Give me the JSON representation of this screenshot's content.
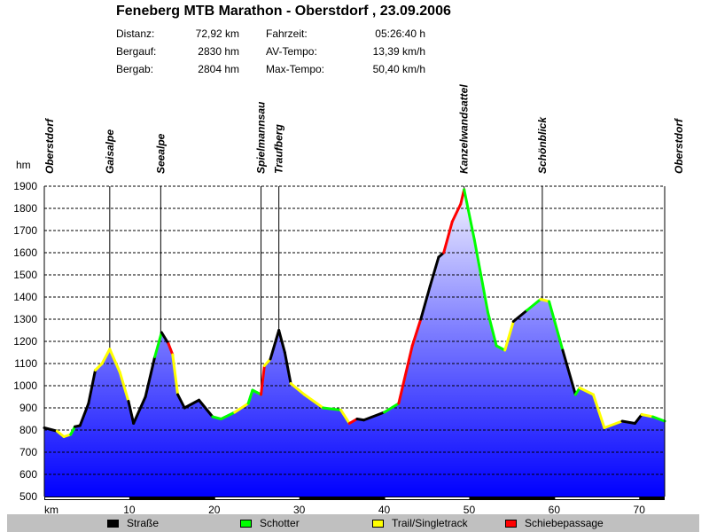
{
  "chart_data": {
    "type": "area",
    "title": "Feneberg MTB Marathon - Oberstdorf , 23.09.2006",
    "xlabel": "km",
    "ylabel": "hm",
    "xlim": [
      0,
      73
    ],
    "ylim": [
      500,
      1900
    ],
    "grid": true,
    "xticks": [
      10,
      20,
      30,
      40,
      50,
      60,
      70
    ],
    "yticks": [
      500,
      600,
      700,
      800,
      900,
      1000,
      1100,
      1200,
      1300,
      1400,
      1500,
      1600,
      1700,
      1800,
      1900
    ],
    "surface_colors": {
      "road": "#000000",
      "gravel": "#00ff00",
      "trail": "#ffff00",
      "push": "#ff0000"
    },
    "legend": [
      {
        "key": "road",
        "label": "Straße"
      },
      {
        "key": "gravel",
        "label": "Schotter"
      },
      {
        "key": "trail",
        "label": "Trail/Singletrack"
      },
      {
        "key": "push",
        "label": "Schiebepassage"
      }
    ],
    "landmarks": [
      {
        "km": 0,
        "label": "Oberstdorf",
        "line": false
      },
      {
        "km": 7.7,
        "label": "Gaisalpe",
        "line": true
      },
      {
        "km": 13.7,
        "label": "Seealpe",
        "line": true
      },
      {
        "km": 25.5,
        "label": "Spielmannsau",
        "line": true
      },
      {
        "km": 27.6,
        "label": "Traufberg",
        "line": true
      },
      {
        "km": 49.4,
        "label": "Kanzelwandsattel",
        "line": true
      },
      {
        "km": 58.6,
        "label": "Schönblick",
        "line": true
      },
      {
        "km": 73,
        "label": "Oberstdorf",
        "line": false
      }
    ],
    "points": [
      [
        0,
        810,
        "road"
      ],
      [
        1.5,
        795,
        "road"
      ],
      [
        2.3,
        770,
        "trail"
      ],
      [
        3.1,
        780,
        "trail"
      ],
      [
        3.6,
        815,
        "gravel"
      ],
      [
        4.2,
        820,
        "road"
      ],
      [
        5.2,
        920,
        "road"
      ],
      [
        6.0,
        1070,
        "road"
      ],
      [
        6.8,
        1100,
        "trail"
      ],
      [
        7.7,
        1165,
        "trail"
      ],
      [
        8.9,
        1060,
        "trail"
      ],
      [
        9.9,
        930,
        "trail"
      ],
      [
        10.5,
        830,
        "road"
      ],
      [
        11.9,
        950,
        "road"
      ],
      [
        13.0,
        1130,
        "road"
      ],
      [
        13.8,
        1240,
        "gravel"
      ],
      [
        14.6,
        1190,
        "road"
      ],
      [
        15.1,
        1140,
        "push"
      ],
      [
        15.7,
        960,
        "trail"
      ],
      [
        16.5,
        900,
        "road"
      ],
      [
        18.2,
        935,
        "road"
      ],
      [
        19.8,
        860,
        "road"
      ],
      [
        20.8,
        850,
        "gravel"
      ],
      [
        22.4,
        880,
        "gravel"
      ],
      [
        24.0,
        920,
        "trail"
      ],
      [
        24.5,
        980,
        "gravel"
      ],
      [
        25.5,
        960,
        "gravel"
      ],
      [
        25.9,
        1090,
        "push"
      ],
      [
        26.6,
        1120,
        "trail"
      ],
      [
        27.6,
        1250,
        "road"
      ],
      [
        28.3,
        1150,
        "road"
      ],
      [
        29.0,
        1010,
        "road"
      ],
      [
        30.6,
        960,
        "trail"
      ],
      [
        32.8,
        900,
        "trail"
      ],
      [
        34.9,
        890,
        "gravel"
      ],
      [
        35.9,
        830,
        "trail"
      ],
      [
        36.8,
        850,
        "push"
      ],
      [
        37.6,
        845,
        "road"
      ],
      [
        40.0,
        880,
        "road"
      ],
      [
        41.7,
        920,
        "gravel"
      ],
      [
        43.3,
        1180,
        "push"
      ],
      [
        44.3,
        1300,
        "push"
      ],
      [
        45.4,
        1450,
        "road"
      ],
      [
        46.4,
        1580,
        "road"
      ],
      [
        47.0,
        1600,
        "road"
      ],
      [
        48.0,
        1740,
        "push"
      ],
      [
        49.0,
        1820,
        "push"
      ],
      [
        49.4,
        1885,
        "push"
      ],
      [
        50.6,
        1660,
        "gravel"
      ],
      [
        52.2,
        1330,
        "gravel"
      ],
      [
        53.2,
        1180,
        "gravel"
      ],
      [
        54.2,
        1160,
        "gravel"
      ],
      [
        55.2,
        1290,
        "trail"
      ],
      [
        56.8,
        1340,
        "road"
      ],
      [
        58.4,
        1390,
        "gravel"
      ],
      [
        59.4,
        1380,
        "trail"
      ],
      [
        61.0,
        1160,
        "gravel"
      ],
      [
        62.5,
        960,
        "road"
      ],
      [
        63.0,
        990,
        "gravel"
      ],
      [
        64.6,
        960,
        "trail"
      ],
      [
        65.9,
        810,
        "trail"
      ],
      [
        68.0,
        840,
        "trail"
      ],
      [
        69.5,
        830,
        "road"
      ],
      [
        70.3,
        870,
        "road"
      ],
      [
        71.6,
        860,
        "trail"
      ],
      [
        73.0,
        840,
        "gravel"
      ]
    ]
  },
  "stats": {
    "distance_label": "Distanz:",
    "distance": "72,92 km",
    "ascent_label": "Bergauf:",
    "ascent": "2830 hm",
    "descent_label": "Bergab:",
    "descent": "2804 hm",
    "time_label": "Fahrzeit:",
    "time": "05:26:40 h",
    "avg_label": "AV-Tempo:",
    "avg": "13,39 km/h",
    "max_label": "Max-Tempo:",
    "max": "50,40 km/h"
  }
}
